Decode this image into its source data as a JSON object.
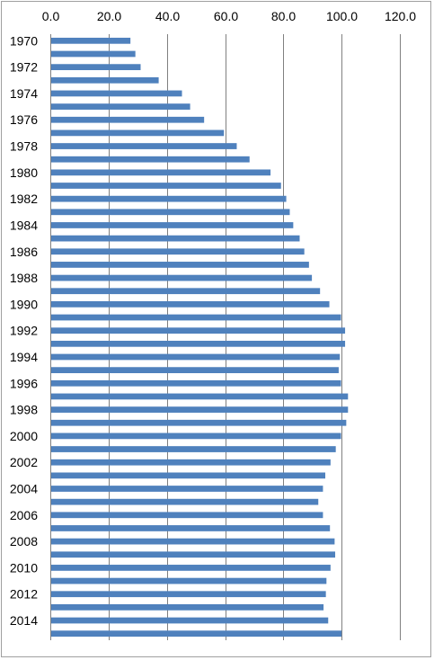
{
  "chart_data": {
    "type": "bar",
    "orientation": "horizontal",
    "title": "",
    "xlabel": "",
    "ylabel": "",
    "xlim": [
      0,
      120
    ],
    "x_tick_labels": [
      "0.0",
      "20.0",
      "40.0",
      "60.0",
      "80.0",
      "100.0",
      "120.0"
    ],
    "x_axis_position": "top",
    "gridlines": "vertical",
    "legend": "none",
    "bar_color": "#4f81bd",
    "grid_color": "#808080",
    "categories": [
      "1970",
      "1971",
      "1972",
      "1973",
      "1974",
      "1975",
      "1976",
      "1977",
      "1978",
      "1979",
      "1980",
      "1981",
      "1982",
      "1983",
      "1984",
      "1985",
      "1986",
      "1987",
      "1988",
      "1989",
      "1990",
      "1991",
      "1992",
      "1993",
      "1994",
      "1995",
      "1996",
      "1997",
      "1998",
      "1999",
      "2000",
      "2001",
      "2002",
      "2003",
      "2004",
      "2005",
      "2006",
      "2007",
      "2008",
      "2009",
      "2010",
      "2011",
      "2012",
      "2013",
      "2014",
      "2015"
    ],
    "category_tick_labels": [
      "1970",
      "",
      "1972",
      "",
      "1974",
      "",
      "1976",
      "",
      "1978",
      "",
      "1980",
      "",
      "1982",
      "",
      "1984",
      "",
      "1986",
      "",
      "1988",
      "",
      "1990",
      "",
      "1992",
      "",
      "1994",
      "",
      "1996",
      "",
      "1998",
      "",
      "2000",
      "",
      "2002",
      "",
      "2004",
      "",
      "2006",
      "",
      "2008",
      "",
      "2010",
      "",
      "2012",
      "",
      "2014",
      ""
    ],
    "values": [
      27.5,
      29.2,
      31.0,
      37.2,
      45.2,
      48.0,
      52.8,
      59.6,
      64.0,
      68.4,
      75.6,
      79.2,
      81.0,
      82.2,
      83.4,
      85.6,
      87.2,
      88.8,
      89.8,
      92.6,
      95.8,
      99.8,
      101.2,
      101.2,
      99.4,
      99.0,
      99.8,
      102.2,
      102.2,
      101.6,
      99.8,
      98.0,
      96.2,
      94.4,
      93.6,
      92.0,
      93.6,
      96.0,
      97.6,
      97.8,
      96.2,
      94.8,
      94.6,
      93.8,
      95.4,
      100.0
    ]
  }
}
